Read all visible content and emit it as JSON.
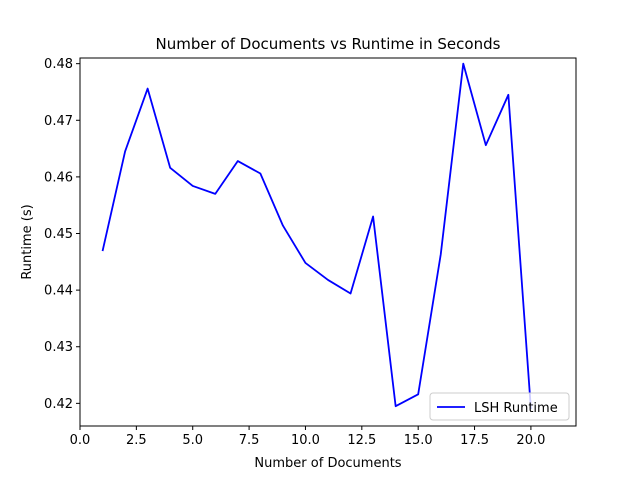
{
  "chart_data": {
    "type": "line",
    "title": "Number of Documents vs Runtime in Seconds",
    "xlabel": "Number of Documents",
    "ylabel": "Runtime (s)",
    "xlim": [
      0,
      22
    ],
    "ylim": [
      0.416,
      0.481
    ],
    "xticks": [
      0.0,
      2.5,
      5.0,
      7.5,
      10.0,
      12.5,
      15.0,
      17.5,
      20.0
    ],
    "xtick_labels": [
      "0.0",
      "2.5",
      "5.0",
      "7.5",
      "10.0",
      "12.5",
      "15.0",
      "17.5",
      "20.0"
    ],
    "yticks": [
      0.42,
      0.43,
      0.44,
      0.45,
      0.46,
      0.47,
      0.48
    ],
    "ytick_labels": [
      "0.42",
      "0.43",
      "0.44",
      "0.45",
      "0.46",
      "0.47",
      "0.48"
    ],
    "grid": false,
    "legend_position": "bottom-right",
    "series": [
      {
        "name": "LSH Runtime",
        "color": "#0000ff",
        "x": [
          1,
          2,
          3,
          4,
          5,
          6,
          7,
          8,
          9,
          10,
          11,
          12,
          13,
          14,
          15,
          16,
          17,
          18,
          19,
          20
        ],
        "y": [
          0.4469,
          0.4645,
          0.4756,
          0.4616,
          0.4584,
          0.457,
          0.4628,
          0.4606,
          0.4514,
          0.4448,
          0.4418,
          0.4394,
          0.453,
          0.4195,
          0.4216,
          0.4463,
          0.48,
          0.4656,
          0.4745,
          0.419
        ]
      }
    ]
  }
}
